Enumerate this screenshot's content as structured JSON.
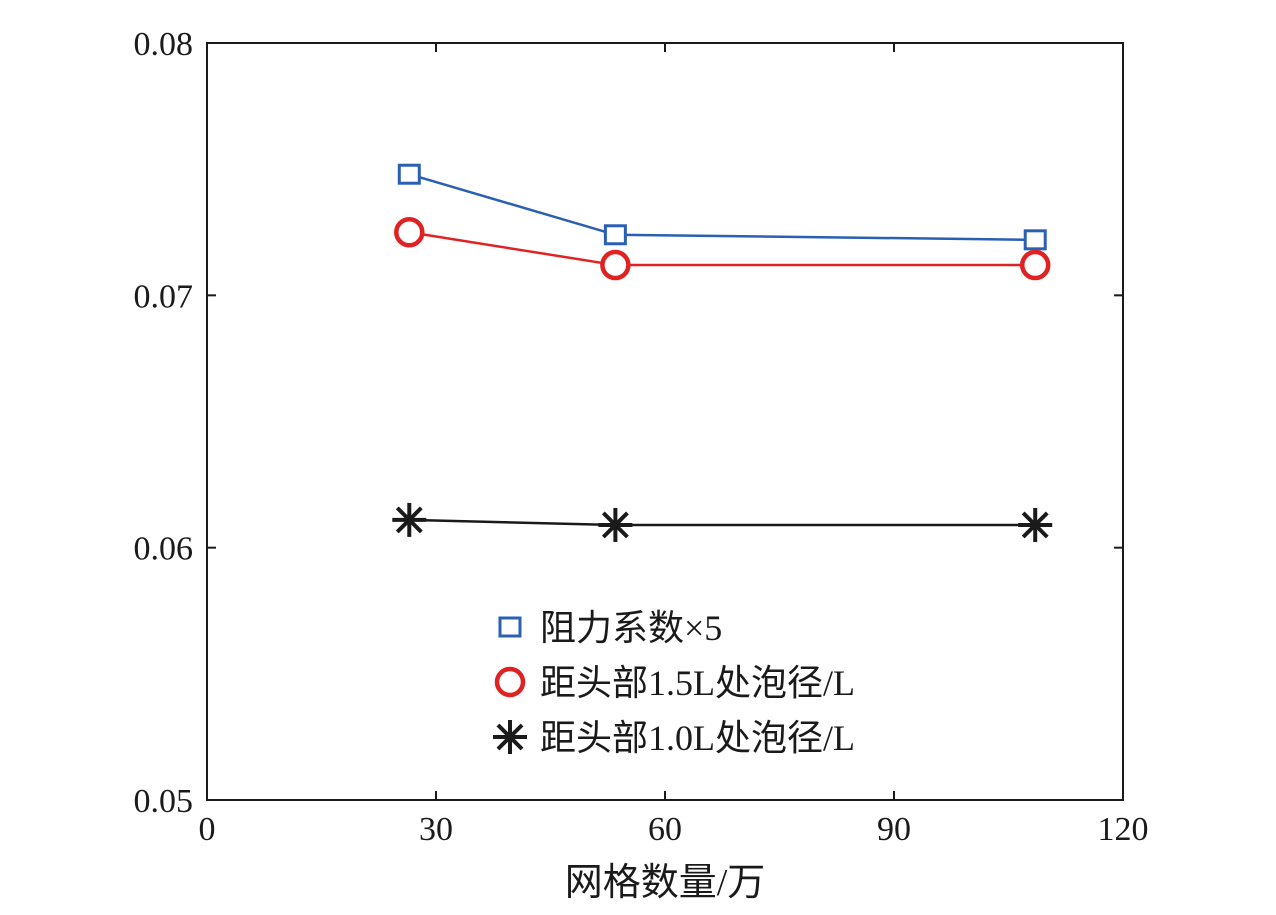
{
  "chart_data": {
    "type": "line",
    "xlabel": "网格数量/万",
    "ylabel": "",
    "xlim": [
      0,
      120
    ],
    "ylim": [
      0.05,
      0.08
    ],
    "x_ticks": [
      "0",
      "30",
      "60",
      "90",
      "120"
    ],
    "y_ticks": [
      "0.05",
      "0.06",
      "0.07",
      "0.08"
    ],
    "grid": false,
    "legend_position": "bottom-center inside",
    "series": [
      {
        "name": "阻力系数×5",
        "color": "#2a5fb3",
        "marker": "square",
        "x": [
          26.5,
          53.5,
          108.5
        ],
        "y": [
          0.0748,
          0.0724,
          0.0722
        ]
      },
      {
        "name": "距头部1.5L处泡径/L",
        "color": "#e02222",
        "marker": "circle",
        "x": [
          26.5,
          53.5,
          108.5
        ],
        "y": [
          0.0725,
          0.0712,
          0.0712
        ]
      },
      {
        "name": "距头部1.0L处泡径/L",
        "color": "#1a1a1a",
        "marker": "asterisk",
        "x": [
          26.5,
          53.5,
          108.5
        ],
        "y": [
          0.0611,
          0.0609,
          0.0609
        ]
      }
    ]
  }
}
